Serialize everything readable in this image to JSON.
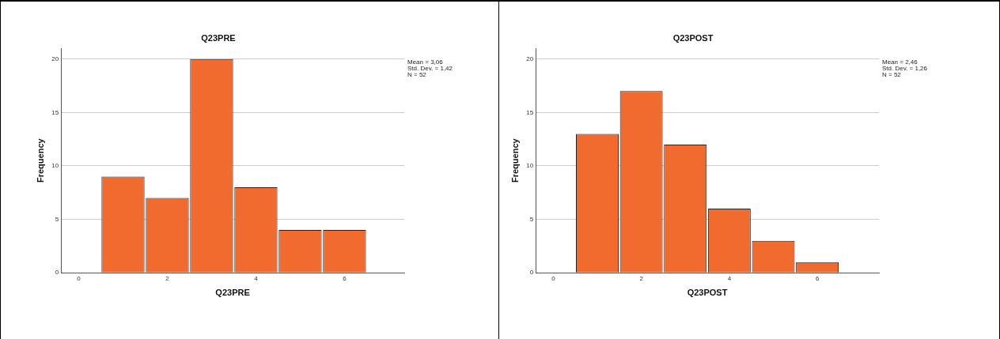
{
  "chart_data": [
    {
      "type": "histogram",
      "title": "Q23PRE",
      "xlabel": "Q23PRE",
      "ylabel": "Frequency",
      "bins": [
        0.5,
        1.5,
        2.5,
        3.5,
        4.5,
        5.5,
        6.5
      ],
      "values": [
        9,
        7,
        20,
        8,
        4,
        4
      ],
      "color": "#f26b2e",
      "xlim": [
        -0.4,
        7.35
      ],
      "xticks": [
        0,
        2,
        4,
        6
      ],
      "ylim": [
        0,
        21
      ],
      "yticks": [
        0,
        5,
        10,
        15,
        20
      ],
      "grid": "y",
      "annotations": [
        "Mean = 3,06",
        "Std. Dev. = 1,42",
        "N = 52"
      ]
    },
    {
      "type": "histogram",
      "title": "Q23POST",
      "xlabel": "Q23POST",
      "ylabel": "Frequency",
      "bins": [
        0.5,
        1.5,
        2.5,
        3.5,
        4.5,
        5.5,
        6.5
      ],
      "values": [
        13,
        17,
        12,
        6,
        3,
        1
      ],
      "color": "#f26b2e",
      "xlim": [
        -0.4,
        7.4
      ],
      "xticks": [
        0,
        2,
        4,
        6
      ],
      "ylim": [
        0,
        21
      ],
      "yticks": [
        0,
        5,
        10,
        15,
        20
      ],
      "grid": "y",
      "annotations": [
        "Mean = 2,46",
        "Std. Dev. = 1,26",
        "N = 52"
      ]
    }
  ]
}
